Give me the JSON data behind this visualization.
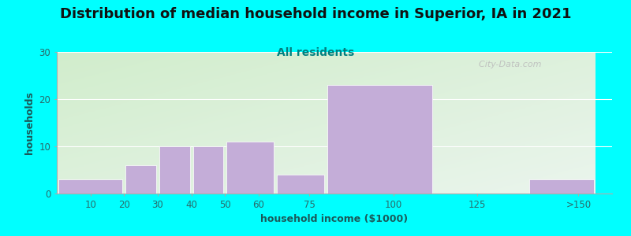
{
  "title": "Distribution of median household income in Superior, IA in 2021",
  "subtitle": "All residents",
  "xlabel": "household income ($1000)",
  "ylabel": "households",
  "background_outer": "#00FFFF",
  "bar_color": "#C4ADD8",
  "categories": [
    "10",
    "20",
    "30",
    "40",
    "50",
    "60",
    "75",
    "100",
    "125",
    ">150"
  ],
  "values": [
    3,
    0,
    6,
    10,
    10,
    11,
    4,
    23,
    0,
    3
  ],
  "ylim": [
    0,
    30
  ],
  "yticks": [
    0,
    10,
    20,
    30
  ],
  "title_fontsize": 13,
  "subtitle_fontsize": 10,
  "label_fontsize": 9,
  "tick_fontsize": 8.5,
  "watermark": "  City-Data.com",
  "grad_topleft": [
    0.82,
    0.93,
    0.8
  ],
  "grad_botright": [
    0.92,
    0.96,
    0.93
  ]
}
